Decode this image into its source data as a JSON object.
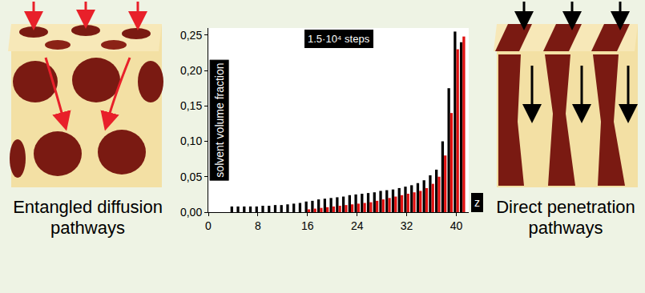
{
  "chart_data": {
    "type": "bar",
    "ylabel": "solvent volume fraction",
    "xlabel": "z",
    "annotations": [
      "1.5·10⁴ steps"
    ],
    "x": [
      4,
      5,
      6,
      7,
      8,
      9,
      10,
      11,
      12,
      13,
      14,
      15,
      16,
      17,
      18,
      19,
      20,
      21,
      22,
      23,
      24,
      25,
      26,
      27,
      28,
      29,
      30,
      31,
      32,
      33,
      34,
      35,
      36,
      37,
      38,
      39,
      40,
      41
    ],
    "series": [
      {
        "color": "#000000",
        "values": [
          0.008,
          0.008,
          0.008,
          0.008,
          0.008,
          0.009,
          0.009,
          0.01,
          0.01,
          0.011,
          0.012,
          0.013,
          0.015,
          0.016,
          0.018,
          0.019,
          0.02,
          0.021,
          0.022,
          0.024,
          0.025,
          0.026,
          0.027,
          0.028,
          0.03,
          0.031,
          0.032,
          0.034,
          0.036,
          0.038,
          0.041,
          0.045,
          0.052,
          0.06,
          0.1,
          0.175,
          0.255,
          0.24
        ]
      },
      {
        "color": "#e01010",
        "values": [
          null,
          null,
          null,
          null,
          null,
          null,
          null,
          null,
          null,
          null,
          null,
          null,
          0.004,
          0.005,
          0.006,
          0.007,
          0.008,
          0.009,
          0.01,
          0.011,
          0.012,
          0.013,
          0.014,
          0.016,
          0.018,
          0.02,
          0.022,
          0.024,
          0.026,
          0.028,
          0.03,
          0.034,
          0.04,
          0.05,
          0.08,
          0.14,
          0.23,
          0.248
        ]
      }
    ],
    "xlim": [
      0,
      42
    ],
    "xticks": [
      0,
      8,
      16,
      24,
      32,
      40
    ],
    "ylim": [
      0,
      0.26
    ],
    "yticks": [
      {
        "value": 0,
        "label": "0,00"
      },
      {
        "value": 0.05,
        "label": "0,05"
      },
      {
        "value": 0.1,
        "label": "0,10"
      },
      {
        "value": 0.15,
        "label": "0,15"
      },
      {
        "value": 0.2,
        "label": "0,20"
      },
      {
        "value": 0.25,
        "label": "0,25"
      }
    ],
    "grid": false
  },
  "panels": [
    {
      "caption": "Entangled diffusion pathways"
    },
    {
      "caption": "Direct penetration pathways"
    }
  ]
}
